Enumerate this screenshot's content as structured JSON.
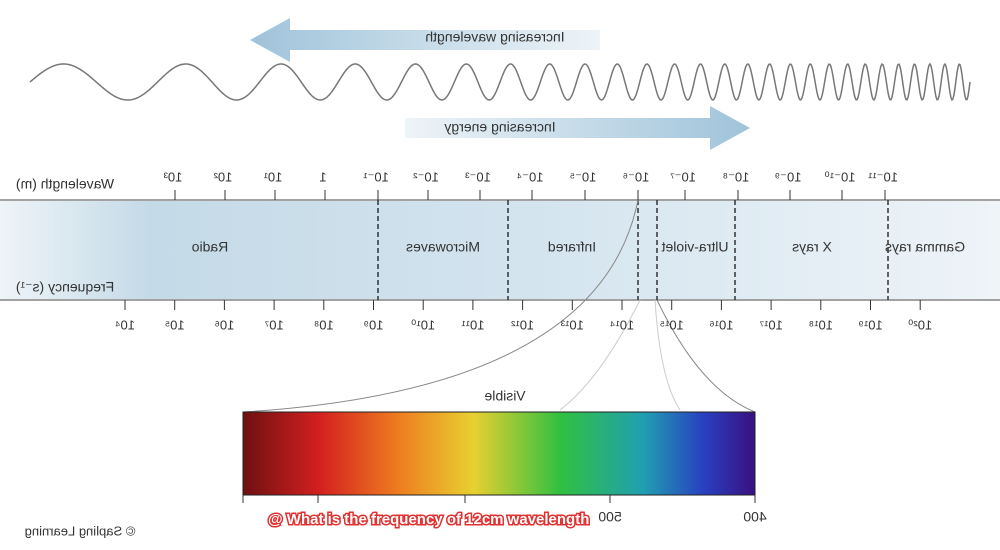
{
  "arrows": {
    "wavelength": "Increasing wavelength",
    "energy": "Increasing energy"
  },
  "axes": {
    "wavelength_label": "Wavelength (m)",
    "frequency_label": "Frequency (s⁻¹)",
    "wavelength_ticks": [
      "10³",
      "10²",
      "10¹",
      "1",
      "10⁻¹",
      "10⁻²",
      "10⁻³",
      "10⁻⁴",
      "10⁻⁵",
      "10⁻⁶",
      "10⁻⁷",
      "10⁻⁸",
      "10⁻⁹",
      "10⁻¹⁰",
      "10⁻¹¹"
    ],
    "frequency_ticks": [
      "10⁴",
      "10⁵",
      "10⁶",
      "10⁷",
      "10⁸",
      "10⁹",
      "10¹⁰",
      "10¹¹",
      "10¹²",
      "10¹³",
      "10¹⁴",
      "10¹⁵",
      "10¹⁶",
      "10¹⁷",
      "10¹⁸",
      "10¹⁹",
      "10²⁰"
    ]
  },
  "regions": [
    "Radio",
    "Microwaves",
    "Infrared",
    "Ultra-violet",
    "X rays",
    "Gamma rays"
  ],
  "visible": {
    "label": "Visible",
    "ticks": [
      "500",
      "400"
    ]
  },
  "caption": "@ What is the frequency of 12cm wavelength",
  "credit": "© Sapling Learning"
}
